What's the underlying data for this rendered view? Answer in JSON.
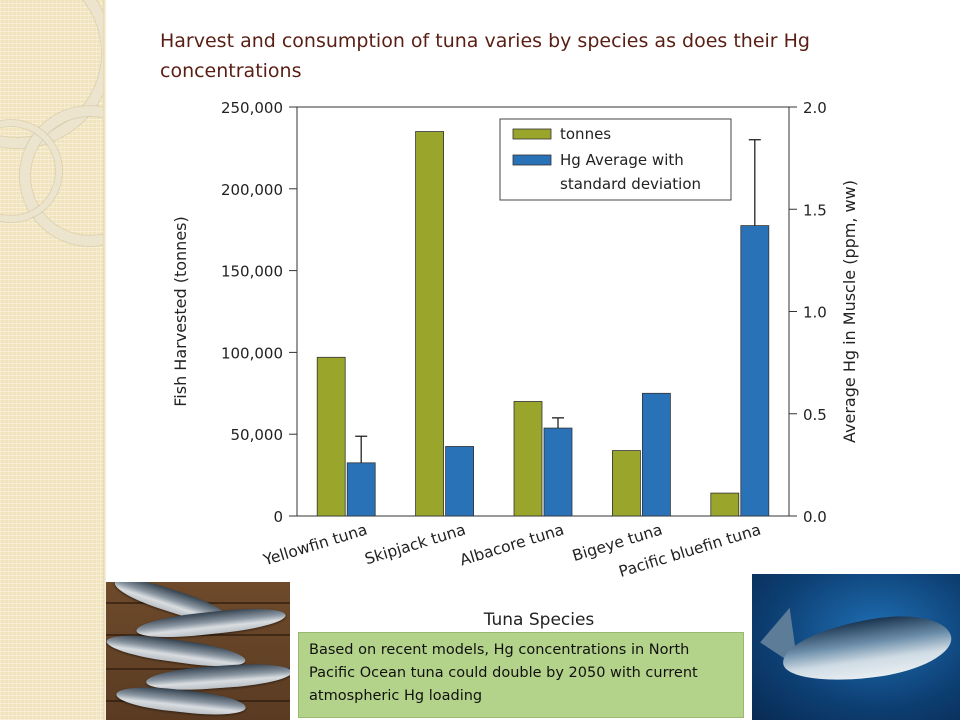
{
  "slide": {
    "title": "Harvest and consumption of tuna varies by species as does their Hg concentrations",
    "callout": "Based on recent models, Hg concentrations in North Pacific Ocean tuna could double by 2050 with current atmospheric Hg loading"
  },
  "colors": {
    "title": "#5a1f14",
    "tonnes": "#9aa52b",
    "hg": "#2a72b8",
    "callout_bg": "#b4d38a",
    "left_strip": "#f1e3bd"
  },
  "chart_data": {
    "type": "bar",
    "xlabel": "Tuna Species",
    "ylabel": "Fish Harvested (tonnes)",
    "y2label": "Average Hg in Muscle (ppm, ww)",
    "categories": [
      "Yellowfin tuna",
      "Skipjack tuna",
      "Albacore tuna",
      "Bigeye tuna",
      "Pacific bluefin tuna"
    ],
    "ylim": [
      0,
      250000
    ],
    "y2lim": [
      0,
      2.0
    ],
    "yticks": [
      "0",
      "50,000",
      "100,000",
      "150,000",
      "200,000",
      "250,000"
    ],
    "y2ticks": [
      "0.0",
      "0.5",
      "1.0",
      "1.5",
      "2.0"
    ],
    "series": [
      {
        "name": "tonnes",
        "axis": "left",
        "values": [
          97000,
          235000,
          70000,
          40000,
          14000
        ]
      },
      {
        "name": "Hg Average with standard deviation",
        "axis": "right",
        "values": [
          0.26,
          0.34,
          0.43,
          0.6,
          1.42
        ],
        "std": [
          0.13,
          0,
          0.05,
          0,
          0.42
        ]
      }
    ],
    "legend": {
      "position": "top-right",
      "entries": [
        "tonnes",
        "Hg Average with",
        "standard deviation"
      ]
    }
  },
  "photos": {
    "left": "yellowfin-tuna-catch-photo",
    "right": "bluefin-tuna-swimming-photo"
  }
}
